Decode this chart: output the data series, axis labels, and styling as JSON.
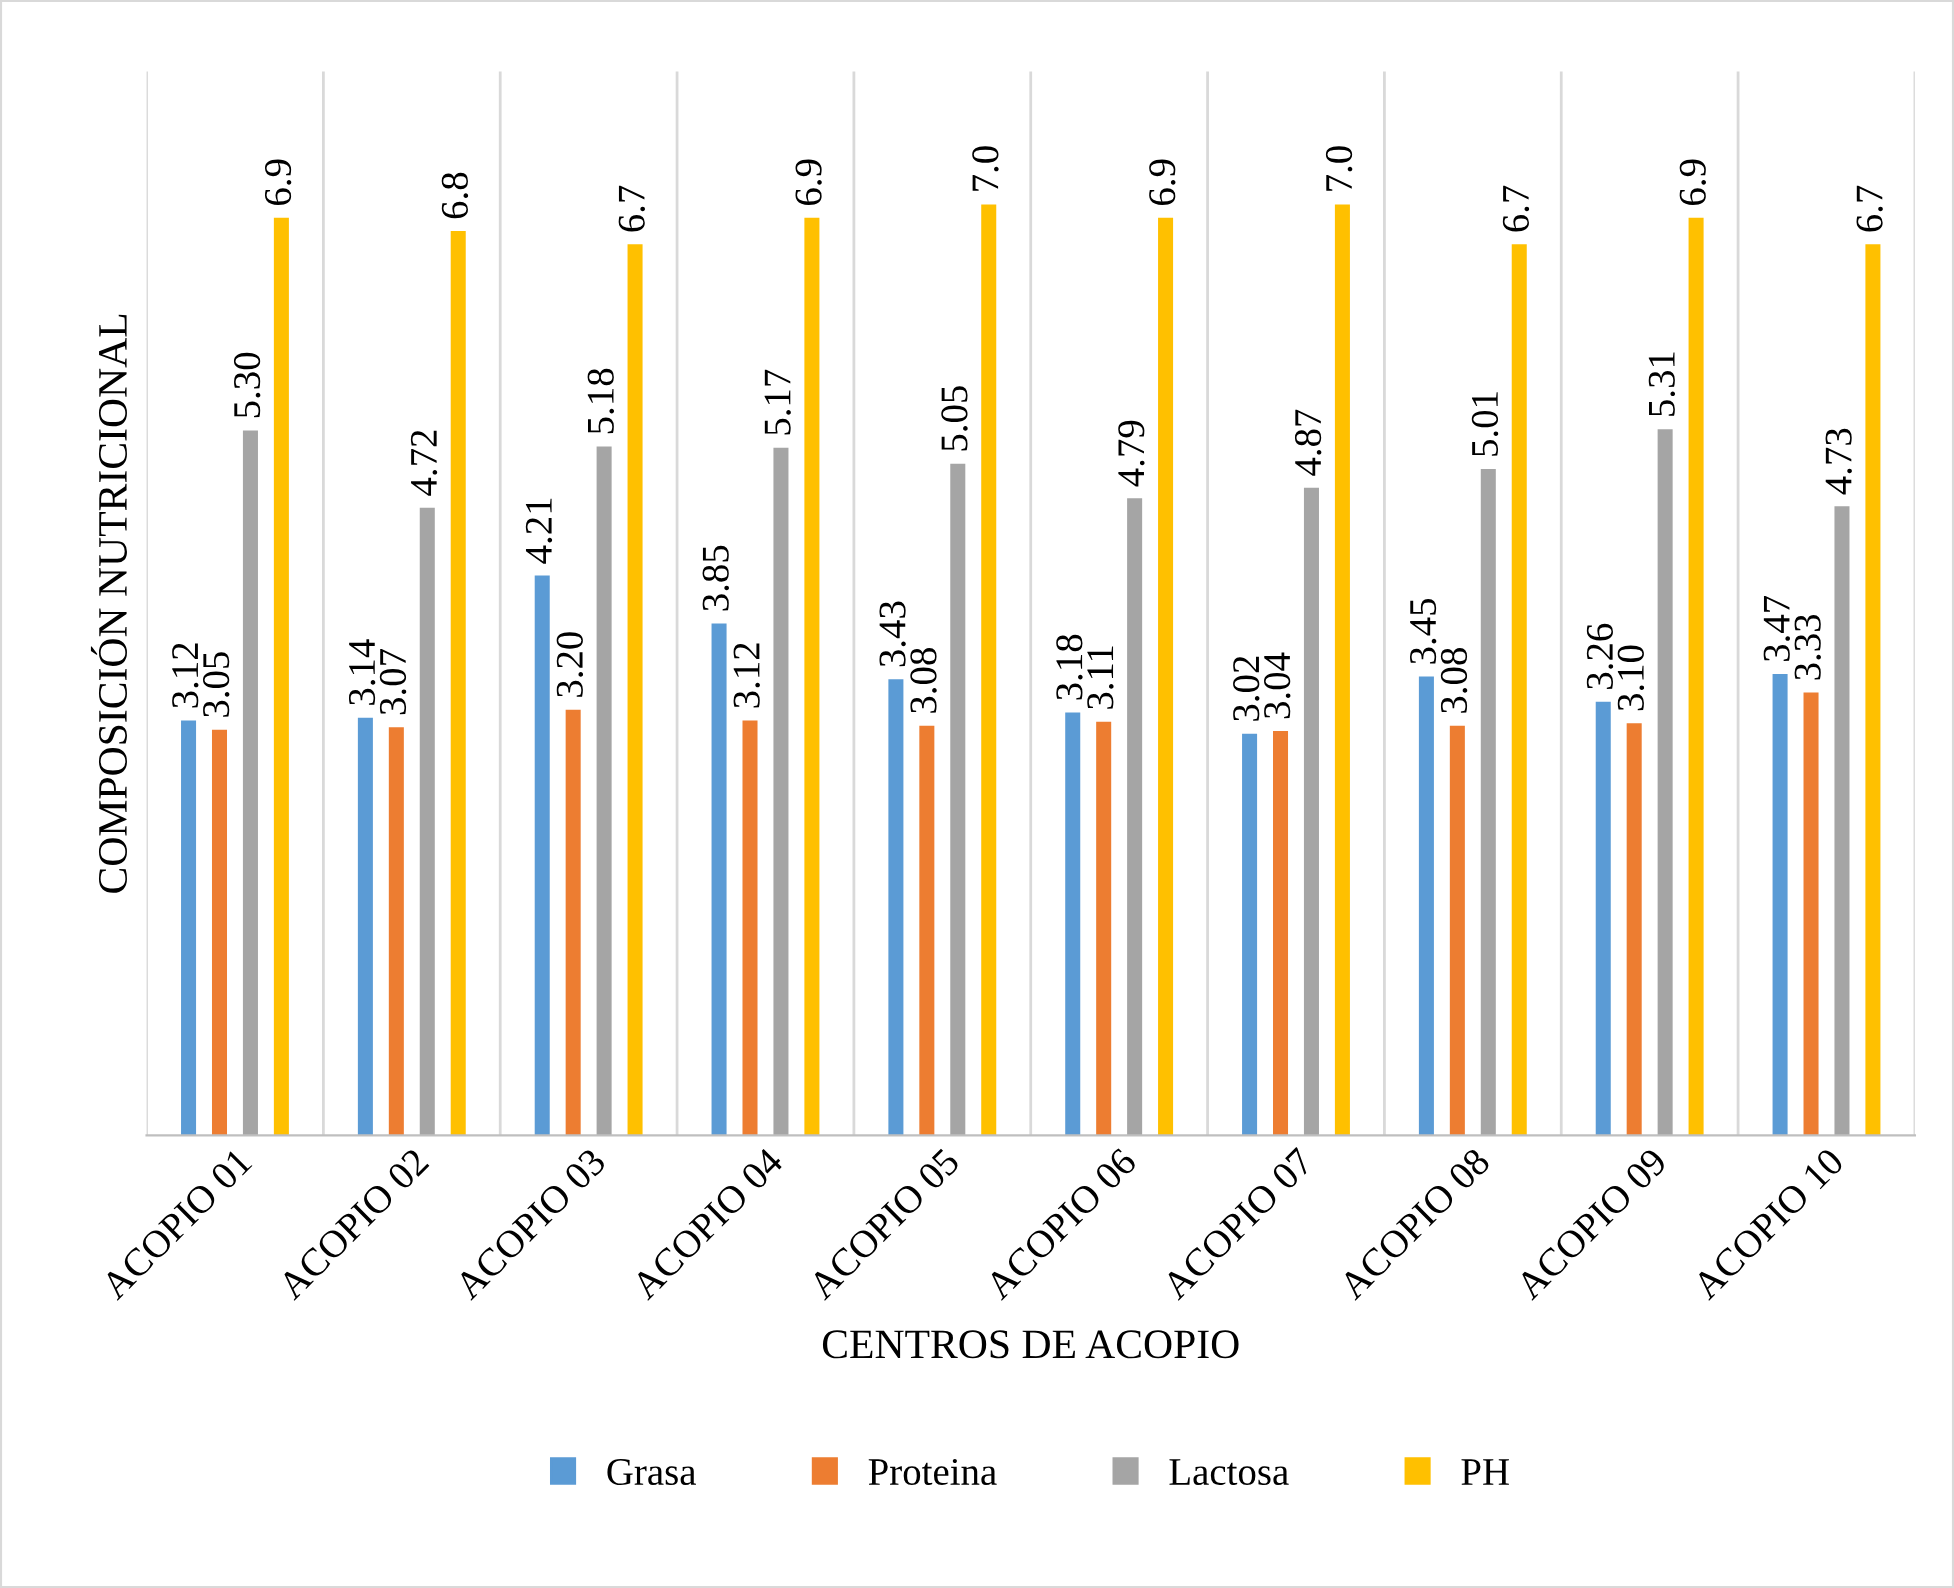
{
  "chart_data": {
    "type": "bar",
    "xlabel": "CENTROS DE ACOPIO",
    "ylabel": "COMPOSICIÓN NUTRICIONAL",
    "categories": [
      "ACOPIO 01",
      "ACOPIO 02",
      "ACOPIO 03",
      "ACOPIO 04",
      "ACOPIO 05",
      "ACOPIO 06",
      "ACOPIO 07",
      "ACOPIO 08",
      "ACOPIO 09",
      "ACOPIO 10"
    ],
    "series": [
      {
        "name": "Grasa",
        "color": "#5b9bd5",
        "values": [
          3.12,
          3.14,
          4.21,
          3.85,
          3.43,
          3.18,
          3.02,
          3.45,
          3.26,
          3.47
        ],
        "value_labels": [
          "3.12",
          "3.14",
          "4.21",
          "3.85",
          "3.43",
          "3.18",
          "3.02",
          "3.45",
          "3.26",
          "3.47"
        ]
      },
      {
        "name": "Proteina",
        "color": "#ed7d31",
        "values": [
          3.05,
          3.07,
          3.2,
          3.12,
          3.08,
          3.11,
          3.04,
          3.08,
          3.1,
          3.33
        ],
        "value_labels": [
          "3.05",
          "3.07",
          "3.20",
          "3.12",
          "3.08",
          "3.11",
          "3.04",
          "3.08",
          "3.10",
          "3.33"
        ]
      },
      {
        "name": "Lactosa",
        "color": "#a5a5a5",
        "values": [
          5.3,
          4.72,
          5.18,
          5.17,
          5.05,
          4.79,
          4.87,
          5.01,
          5.31,
          4.73
        ],
        "value_labels": [
          "5.30",
          "4.72",
          "5.18",
          "5.17",
          "5.05",
          "4.79",
          "4.87",
          "5.01",
          "5.31",
          "4.73"
        ]
      },
      {
        "name": "PH",
        "color": "#ffc000",
        "values": [
          6.9,
          6.8,
          6.7,
          6.9,
          7.0,
          6.9,
          7.0,
          6.7,
          6.9,
          6.7
        ],
        "value_labels": [
          "6.9",
          "6.8",
          "6.7",
          "6.9",
          "7.0",
          "6.9",
          "7.0",
          "6.7",
          "6.9",
          "6.7"
        ]
      }
    ],
    "ylim": [
      0,
      8
    ],
    "tick_labels": "x",
    "grid": "x",
    "legend": "bottom"
  }
}
